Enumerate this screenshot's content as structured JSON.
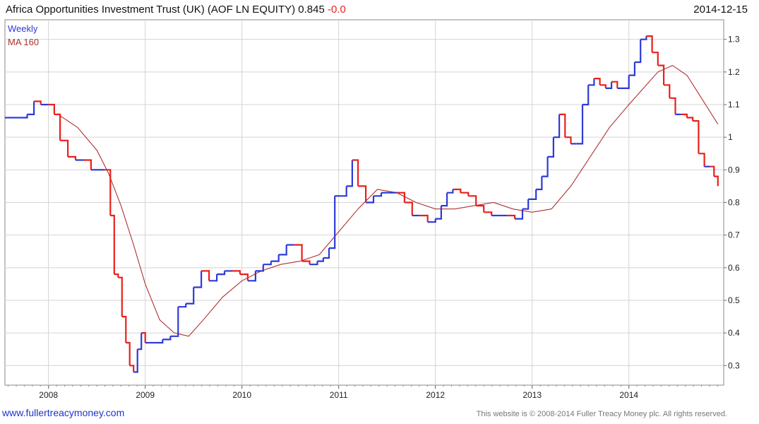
{
  "header": {
    "title": "Africa Opportunities Investment Trust (UK)  (AOF LN EQUITY) 0.845",
    "change": "-0.0",
    "date": "2014-12-15"
  },
  "footer": {
    "link": "www.fullertreacymoney.com",
    "copyright": "This website is © 2008-2014 Fuller Treacy Money plc. All rights reserved."
  },
  "colors": {
    "up": "#2d3ad6",
    "down": "#e8201c",
    "ma": "#b03030",
    "grid": "#d4d4d4"
  },
  "chart_data": {
    "type": "line",
    "grid": true,
    "legend_placement": "top-left",
    "y_axis_side": "right",
    "ylim": [
      0.24,
      1.36
    ],
    "xlim": [
      2007.55,
      2014.98
    ],
    "x_ticks": [
      "2008",
      "2009",
      "2010",
      "2011",
      "2012",
      "2013",
      "2014"
    ],
    "y_ticks": [
      "0.3",
      "0.4",
      "0.5",
      "0.6",
      "0.7",
      "0.8",
      "0.9",
      "1",
      "1.1",
      "1.2",
      "1.3"
    ],
    "series": [
      {
        "name": "Weekly",
        "x": [
          2007.55,
          2007.62,
          2007.7,
          2007.78,
          2007.85,
          2007.92,
          2008.0,
          2008.06,
          2008.12,
          2008.2,
          2008.28,
          2008.36,
          2008.44,
          2008.52,
          2008.58,
          2008.64,
          2008.68,
          2008.72,
          2008.76,
          2008.8,
          2008.84,
          2008.88,
          2008.92,
          2008.96,
          2009.0,
          2009.04,
          2009.1,
          2009.18,
          2009.26,
          2009.34,
          2009.42,
          2009.5,
          2009.58,
          2009.66,
          2009.74,
          2009.82,
          2009.9,
          2009.98,
          2010.06,
          2010.14,
          2010.22,
          2010.3,
          2010.38,
          2010.46,
          2010.54,
          2010.62,
          2010.7,
          2010.78,
          2010.84,
          2010.9,
          2010.96,
          2011.02,
          2011.08,
          2011.14,
          2011.2,
          2011.28,
          2011.36,
          2011.44,
          2011.52,
          2011.6,
          2011.68,
          2011.76,
          2011.84,
          2011.92,
          2012.0,
          2012.06,
          2012.12,
          2012.18,
          2012.26,
          2012.34,
          2012.42,
          2012.5,
          2012.58,
          2012.66,
          2012.74,
          2012.82,
          2012.9,
          2012.96,
          2013.04,
          2013.1,
          2013.16,
          2013.22,
          2013.28,
          2013.34,
          2013.4,
          2013.46,
          2013.52,
          2013.58,
          2013.64,
          2013.7,
          2013.76,
          2013.82,
          2013.88,
          2013.94,
          2014.0,
          2014.06,
          2014.12,
          2014.18,
          2014.24,
          2014.3,
          2014.36,
          2014.42,
          2014.48,
          2014.54,
          2014.6,
          2014.66,
          2014.72,
          2014.78,
          2014.84,
          2014.88,
          2014.92
        ],
        "values": [
          1.06,
          1.06,
          1.06,
          1.07,
          1.11,
          1.1,
          1.1,
          1.07,
          0.99,
          0.94,
          0.93,
          0.93,
          0.9,
          0.9,
          0.9,
          0.76,
          0.58,
          0.57,
          0.45,
          0.37,
          0.3,
          0.28,
          0.35,
          0.4,
          0.37,
          0.37,
          0.37,
          0.38,
          0.39,
          0.48,
          0.49,
          0.54,
          0.59,
          0.56,
          0.58,
          0.59,
          0.59,
          0.58,
          0.56,
          0.59,
          0.61,
          0.62,
          0.64,
          0.67,
          0.67,
          0.62,
          0.61,
          0.62,
          0.63,
          0.66,
          0.82,
          0.82,
          0.85,
          0.93,
          0.85,
          0.8,
          0.82,
          0.83,
          0.83,
          0.83,
          0.8,
          0.76,
          0.76,
          0.74,
          0.75,
          0.79,
          0.83,
          0.84,
          0.83,
          0.82,
          0.79,
          0.77,
          0.76,
          0.76,
          0.76,
          0.75,
          0.78,
          0.81,
          0.84,
          0.88,
          0.94,
          1.0,
          1.07,
          1.0,
          0.98,
          0.98,
          1.1,
          1.16,
          1.18,
          1.16,
          1.15,
          1.17,
          1.15,
          1.15,
          1.19,
          1.23,
          1.3,
          1.31,
          1.26,
          1.22,
          1.16,
          1.12,
          1.07,
          1.07,
          1.06,
          1.05,
          0.95,
          0.91,
          0.91,
          0.88,
          0.85
        ]
      },
      {
        "name": "MA 160",
        "x": [
          2008.1,
          2008.3,
          2008.5,
          2008.62,
          2008.75,
          2008.88,
          2009.0,
          2009.15,
          2009.3,
          2009.45,
          2009.6,
          2009.8,
          2010.0,
          2010.2,
          2010.4,
          2010.6,
          2010.8,
          2011.0,
          2011.2,
          2011.4,
          2011.6,
          2011.8,
          2012.0,
          2012.2,
          2012.4,
          2012.6,
          2012.8,
          2013.0,
          2013.2,
          2013.4,
          2013.6,
          2013.8,
          2014.0,
          2014.15,
          2014.3,
          2014.45,
          2014.6,
          2014.75,
          2014.92
        ],
        "values": [
          1.07,
          1.03,
          0.96,
          0.89,
          0.79,
          0.67,
          0.55,
          0.44,
          0.4,
          0.39,
          0.44,
          0.51,
          0.56,
          0.59,
          0.61,
          0.62,
          0.64,
          0.71,
          0.78,
          0.84,
          0.83,
          0.8,
          0.78,
          0.78,
          0.79,
          0.8,
          0.78,
          0.77,
          0.78,
          0.85,
          0.94,
          1.03,
          1.1,
          1.15,
          1.2,
          1.22,
          1.19,
          1.12,
          1.04
        ]
      }
    ]
  }
}
